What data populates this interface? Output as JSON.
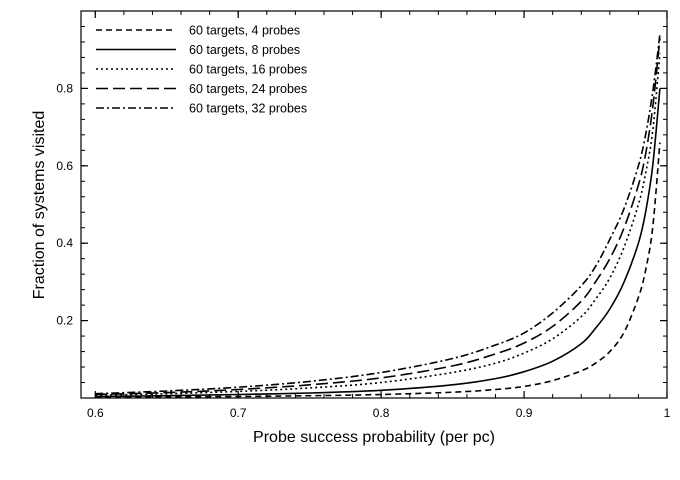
{
  "chart_data": {
    "type": "line",
    "title": "",
    "xlabel": "Probe success probability (per pc)",
    "ylabel": "Fraction of systems visited",
    "xlim": [
      0.59,
      1.0
    ],
    "ylim": [
      0.0,
      1.0
    ],
    "x_ticks": [
      0.6,
      0.7,
      0.8,
      0.9,
      1.0
    ],
    "x_tick_labels": [
      "0.6",
      "0.7",
      "0.8",
      "0.9",
      "1"
    ],
    "y_ticks": [
      0.2,
      0.4,
      0.6,
      0.8
    ],
    "y_tick_labels": [
      "0.2",
      "0.4",
      "0.6",
      "0.8"
    ],
    "x_minor_step": 0.02,
    "y_minor_step": 0.04,
    "grid": false,
    "legend_position": "top-left",
    "series": [
      {
        "name": "60 targets, 4 probes",
        "dash": "6,4",
        "x": [
          0.6,
          0.65,
          0.7,
          0.75,
          0.8,
          0.85,
          0.88,
          0.9,
          0.92,
          0.94,
          0.95,
          0.96,
          0.97,
          0.98,
          0.985,
          0.99,
          0.995
        ],
        "y": [
          0.002,
          0.003,
          0.004,
          0.006,
          0.009,
          0.015,
          0.022,
          0.03,
          0.045,
          0.07,
          0.09,
          0.12,
          0.17,
          0.26,
          0.33,
          0.44,
          0.66
        ]
      },
      {
        "name": "60 targets, 8 probes",
        "dash": "",
        "x": [
          0.6,
          0.65,
          0.7,
          0.75,
          0.8,
          0.85,
          0.88,
          0.9,
          0.92,
          0.94,
          0.95,
          0.96,
          0.97,
          0.98,
          0.985,
          0.99,
          0.995
        ],
        "y": [
          0.004,
          0.006,
          0.009,
          0.013,
          0.02,
          0.034,
          0.05,
          0.068,
          0.095,
          0.14,
          0.18,
          0.23,
          0.3,
          0.4,
          0.48,
          0.6,
          0.8
        ]
      },
      {
        "name": "60 targets, 16 probes",
        "dash": "2,3",
        "x": [
          0.6,
          0.65,
          0.7,
          0.75,
          0.8,
          0.85,
          0.88,
          0.9,
          0.92,
          0.94,
          0.95,
          0.96,
          0.97,
          0.98,
          0.985,
          0.99,
          0.995
        ],
        "y": [
          0.007,
          0.011,
          0.017,
          0.026,
          0.04,
          0.066,
          0.09,
          0.116,
          0.153,
          0.21,
          0.255,
          0.31,
          0.39,
          0.5,
          0.58,
          0.69,
          0.89
        ]
      },
      {
        "name": "60 targets, 24 probes",
        "dash": "12,5",
        "x": [
          0.6,
          0.65,
          0.7,
          0.75,
          0.8,
          0.85,
          0.88,
          0.9,
          0.92,
          0.94,
          0.95,
          0.96,
          0.97,
          0.98,
          0.985,
          0.99,
          0.995
        ],
        "y": [
          0.009,
          0.014,
          0.022,
          0.034,
          0.052,
          0.083,
          0.114,
          0.142,
          0.185,
          0.25,
          0.3,
          0.36,
          0.44,
          0.55,
          0.63,
          0.75,
          0.93
        ]
      },
      {
        "name": "60 targets, 32 probes",
        "dash": "8,3,2,3",
        "x": [
          0.6,
          0.65,
          0.7,
          0.75,
          0.8,
          0.85,
          0.88,
          0.9,
          0.92,
          0.94,
          0.95,
          0.96,
          0.97,
          0.98,
          0.985,
          0.99,
          0.995
        ],
        "y": [
          0.011,
          0.018,
          0.028,
          0.043,
          0.066,
          0.102,
          0.137,
          0.168,
          0.22,
          0.29,
          0.34,
          0.41,
          0.49,
          0.6,
          0.68,
          0.79,
          0.94
        ]
      }
    ]
  }
}
